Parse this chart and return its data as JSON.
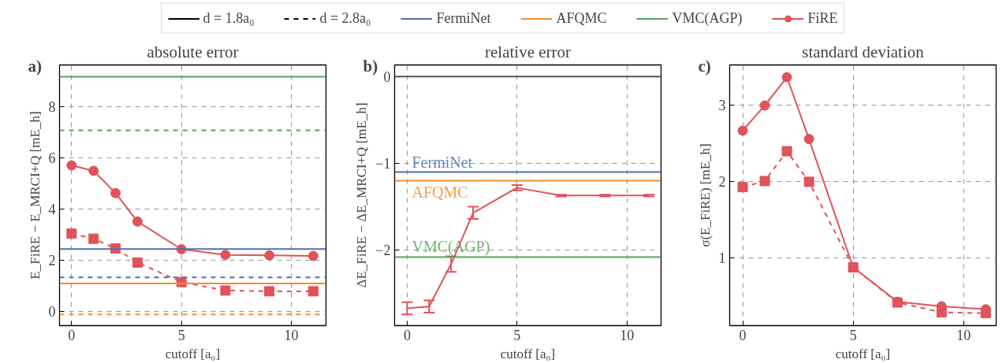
{
  "chart_data": [
    {
      "type": "line",
      "title": "absolute error",
      "annotations": [
        "a)"
      ],
      "xlabel": "cutoff [a₀]",
      "ylabel": "E_FiRE − E_MRCI+Q [mE_h]",
      "xlim": [
        -0.55,
        11.58
      ],
      "ylim": [
        -0.55,
        9.62
      ],
      "xticks": [
        0,
        5,
        10
      ],
      "yticks": [
        0,
        2,
        4,
        6,
        8
      ],
      "grid": true,
      "legend": "top",
      "series": [
        {
          "name": "d = 1.8a₀",
          "color": "#000000",
          "line_style": "solid",
          "marker": "none"
        },
        {
          "name": "d = 2.8a₀",
          "color": "#000000",
          "line_style": "dashed",
          "marker": "none"
        },
        {
          "name": "FiRE",
          "color": "#e0535a",
          "line_style": "solid",
          "marker": "circle",
          "x": [
            0,
            1,
            2,
            3,
            5,
            7,
            9,
            11
          ],
          "values": [
            5.7,
            5.49,
            4.62,
            3.51,
            2.43,
            2.21,
            2.19,
            2.17
          ]
        },
        {
          "color": "#e0535a",
          "line_style": "dashed",
          "marker": "square",
          "x": [
            0,
            1,
            2,
            3,
            5,
            7,
            9,
            11
          ],
          "values": [
            3.04,
            2.84,
            2.46,
            1.91,
            1.15,
            0.82,
            0.79,
            0.79
          ]
        }
      ],
      "ref_lines": [
        {
          "axis": "y",
          "value": 2.44,
          "label": "FermiNet",
          "color": "#4c72b0",
          "line_style": "solid"
        },
        {
          "axis": "y",
          "value": 1.09,
          "label": "AFQMC",
          "color": "#f28e2b",
          "line_style": "solid"
        },
        {
          "axis": "y",
          "value": 9.16,
          "label": "VMC(AGP)",
          "color": "#55a854",
          "line_style": "solid"
        },
        {
          "axis": "y",
          "value": 1.33,
          "color": "#4c72b0",
          "line_style": "dashed"
        },
        {
          "axis": "y",
          "value": -0.11,
          "color": "#f28e2b",
          "line_style": "dashed"
        },
        {
          "axis": "y",
          "value": 7.07,
          "color": "#55a854",
          "line_style": "dashed"
        }
      ]
    },
    {
      "type": "line",
      "title": "relative error",
      "annotations": [
        "b)"
      ],
      "xlabel": "cutoff [a₀]",
      "ylabel": "ΔE_FiRE − ΔE_MRCI+Q [mE_h]",
      "xlim": [
        -0.57,
        11.55
      ],
      "ylim": [
        -2.87,
        0.135
      ],
      "xticks": [
        0,
        5,
        10
      ],
      "yticks": [
        {
          "value": 0,
          "label": "0"
        },
        {
          "value": -1,
          "label": "−1"
        },
        {
          "value": -2,
          "label": "−2"
        }
      ],
      "grid": true,
      "series": [
        {
          "color": "#e0535a",
          "line_style": "solid",
          "marker": "none",
          "x": [
            0,
            1,
            2,
            3,
            5,
            7,
            9,
            11
          ],
          "values": [
            -2.67,
            -2.65,
            -2.16,
            -1.57,
            -1.28,
            -1.37,
            -1.37,
            -1.37
          ],
          "errors": [
            0.07,
            0.07,
            0.09,
            0.07,
            0.03,
            0.01,
            0.01,
            0.01
          ]
        }
      ],
      "ref_lines": [
        {
          "axis": "y",
          "value": 0,
          "color": "#555555",
          "line_style": "solid"
        },
        {
          "axis": "y",
          "value": -1.1,
          "label": "FermiNet",
          "color": "#4c72b0",
          "line_style": "solid"
        },
        {
          "axis": "y",
          "value": -1.2,
          "label": "AFQMC",
          "color": "#f28e2b",
          "line_style": "solid"
        },
        {
          "axis": "y",
          "value": -2.08,
          "label": "VMC(AGP)",
          "color": "#55a854",
          "line_style": "solid"
        }
      ]
    },
    {
      "type": "line",
      "title": "standard deviation",
      "annotations": [
        "c)"
      ],
      "xlabel": "cutoff [a₀]",
      "ylabel": "σ(E_FiRE) [mE_h]",
      "xlim": [
        -0.59,
        11.47
      ],
      "ylim": [
        0.117,
        3.53
      ],
      "xticks": [
        0,
        5,
        10
      ],
      "yticks": [
        1,
        2,
        3
      ],
      "grid": true,
      "series": [
        {
          "color": "#e0535a",
          "line_style": "solid",
          "marker": "circle",
          "x": [
            0,
            1,
            2,
            3,
            5,
            7,
            9,
            11
          ],
          "values": [
            2.67,
            3.0,
            3.37,
            2.56,
            0.88,
            0.43,
            0.37,
            0.33
          ]
        },
        {
          "color": "#e0535a",
          "line_style": "dashed",
          "marker": "square",
          "x": [
            0,
            1,
            2,
            3,
            5,
            7,
            9,
            11
          ],
          "values": [
            1.93,
            2.01,
            2.4,
            2.0,
            0.88,
            0.42,
            0.29,
            0.28
          ]
        }
      ]
    }
  ]
}
